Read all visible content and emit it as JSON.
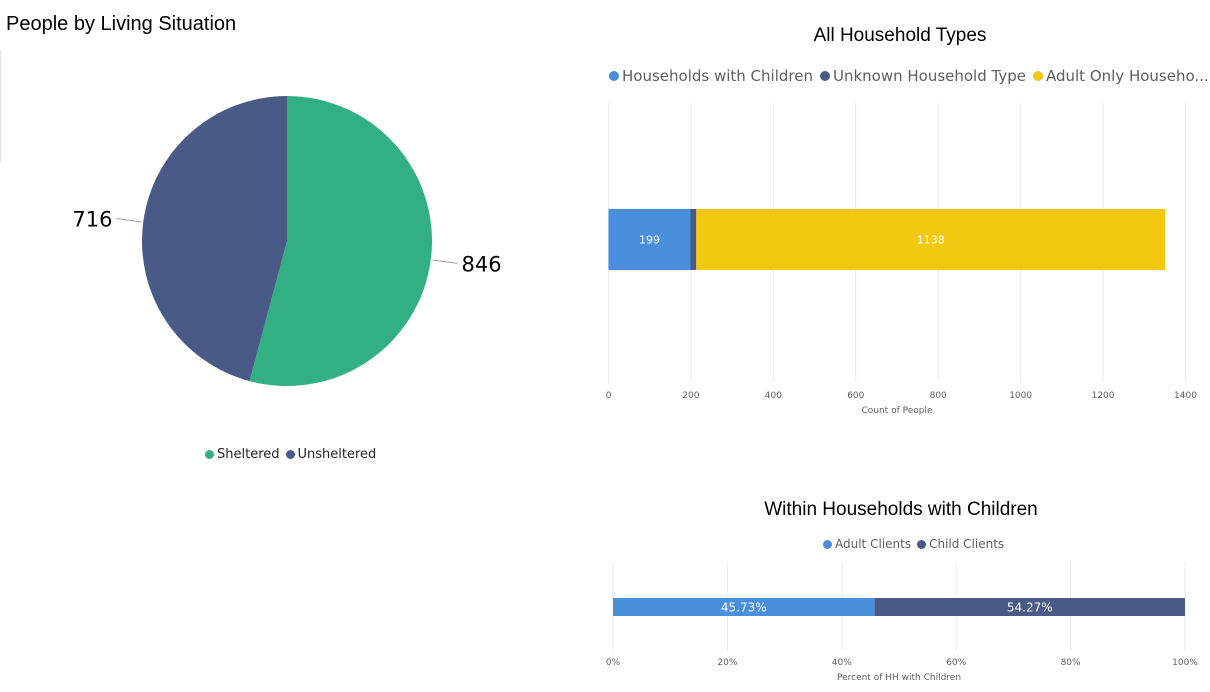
{
  "colors": {
    "sheltered": "#33b083",
    "unsheltered": "#4a5a87",
    "hh_children": "#4a8fdb",
    "unknown_type": "#4a5a87",
    "adult_only": "#f2c811",
    "adult_clients": "#4a8fdb",
    "child_clients": "#4a5a87",
    "grid": "#ebebeb",
    "tick": "#605e5c"
  },
  "chart_data": [
    {
      "type": "pie",
      "title": "People by Living Situation",
      "labels": [
        "Sheltered",
        "Unsheltered"
      ],
      "values": [
        846,
        716
      ],
      "data_labels": [
        "846",
        "716"
      ],
      "legend": [
        "Sheltered",
        "Unsheltered"
      ],
      "legend_position": "bottom-center"
    },
    {
      "type": "bar",
      "orientation": "horizontal",
      "stacked": true,
      "title": "All Household Types",
      "xlabel": "Count of People",
      "xlim": [
        0,
        1400
      ],
      "xticks": [
        "0",
        "200",
        "400",
        "600",
        "800",
        "1000",
        "1200",
        "1400"
      ],
      "xtick_values": [
        0,
        200,
        400,
        600,
        800,
        1000,
        1200,
        1400
      ],
      "series": [
        {
          "name": "Households with Children",
          "values": [
            199
          ],
          "label": "199"
        },
        {
          "name": "Unknown Household Type",
          "values": [
            14
          ],
          "label": ""
        },
        {
          "name": "Adult Only Househo...",
          "values": [
            1138
          ],
          "label": "1138"
        }
      ],
      "legend_position": "top"
    },
    {
      "type": "bar",
      "orientation": "horizontal",
      "stacked": true,
      "title": "Within Households with Children",
      "xlabel": "Percent of HH with Children",
      "xlim": [
        0,
        100
      ],
      "xticks": [
        "0%",
        "20%",
        "40%",
        "60%",
        "80%",
        "100%"
      ],
      "xtick_values": [
        0,
        20,
        40,
        60,
        80,
        100
      ],
      "series": [
        {
          "name": "Adult Clients",
          "values": [
            45.73
          ],
          "label": "45.73%"
        },
        {
          "name": "Child Clients",
          "values": [
            54.27
          ],
          "label": "54.27%"
        }
      ],
      "legend_position": "top"
    }
  ]
}
